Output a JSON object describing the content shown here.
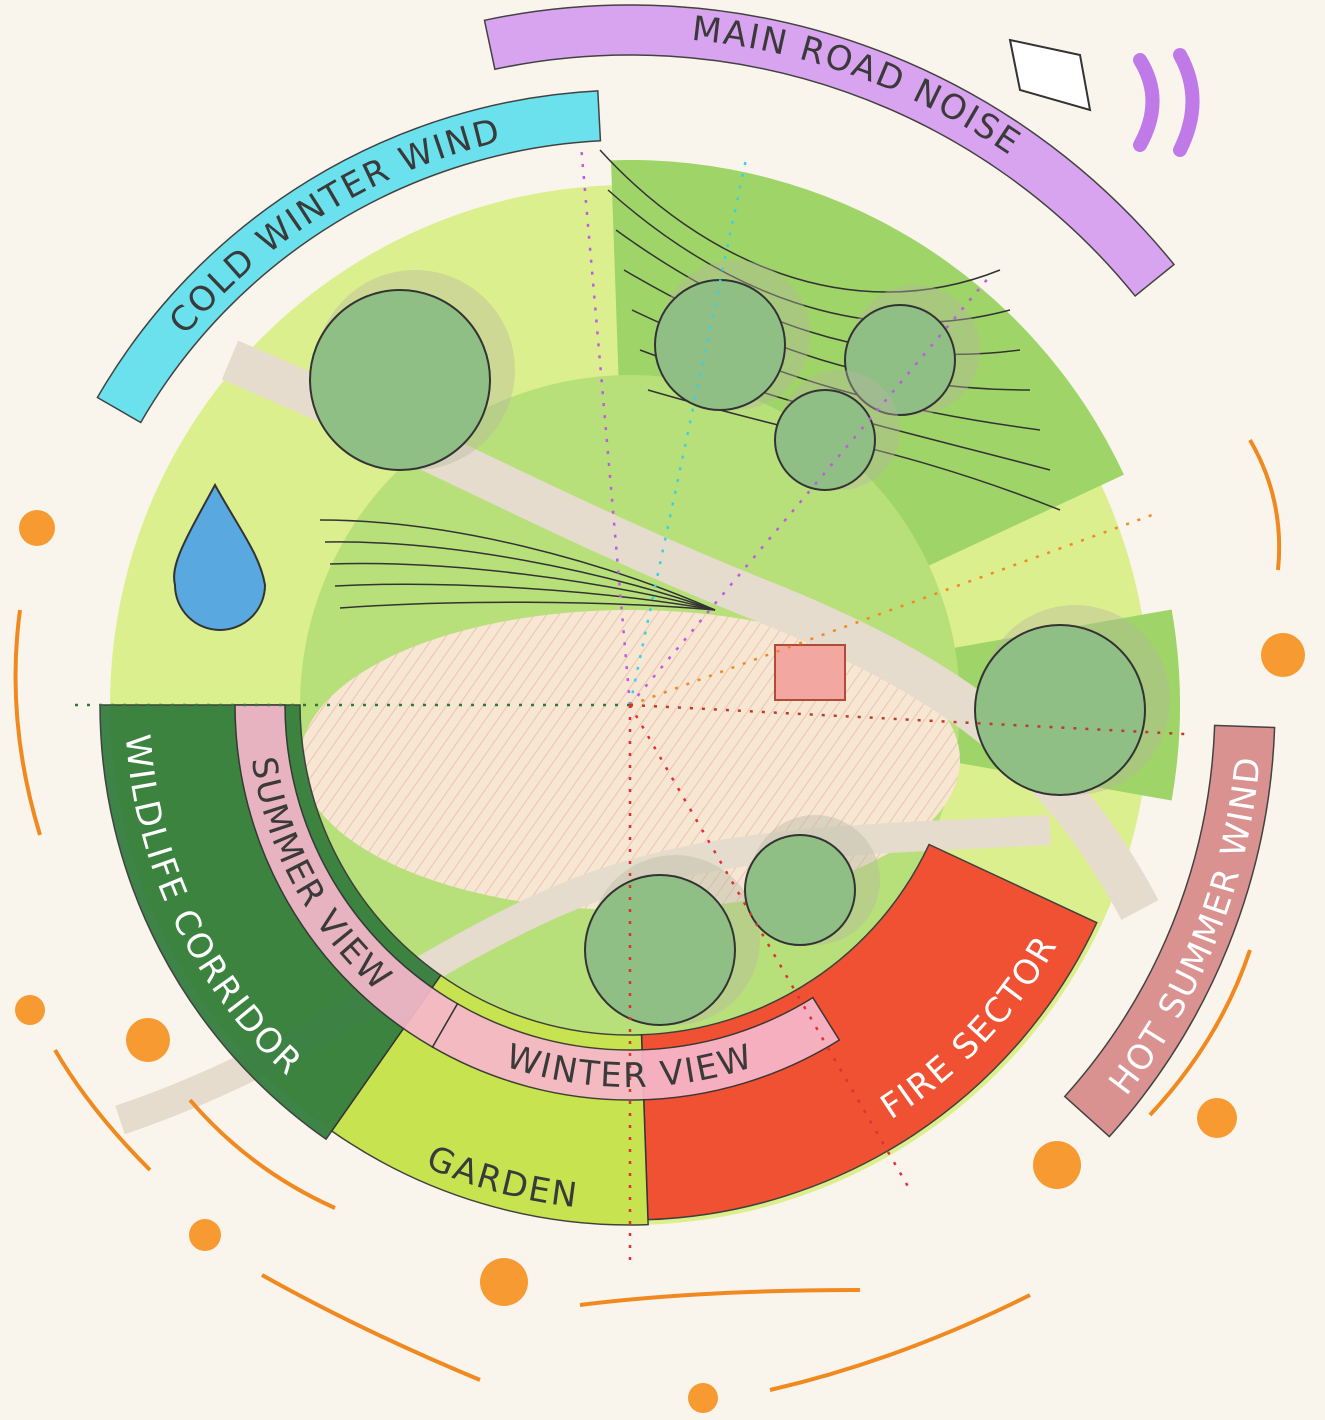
{
  "sectors": [
    {
      "label": "MAIN ROAD NOISE"
    },
    {
      "label": "COLD WINTER WIND"
    },
    {
      "label": "HOT SUMMER WIND"
    },
    {
      "label": "FIRE SECTOR"
    },
    {
      "label": "GARDEN"
    },
    {
      "label": "WILDLIFE CORRIDOR"
    },
    {
      "label": "SUMMER VIEW"
    },
    {
      "label": "WINTER VIEW"
    }
  ]
}
